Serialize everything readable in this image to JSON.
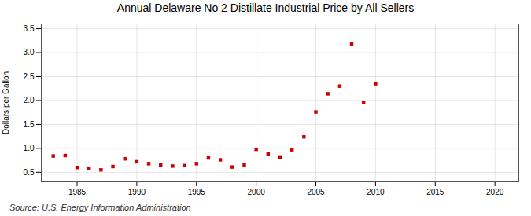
{
  "chart_data": {
    "type": "scatter",
    "title": "Annual Delaware No 2 Distillate Industrial Price by All Sellers",
    "ylabel": "Dollars per Gallon",
    "source": "Source: U.S. Energy Information Administration",
    "color": "#cc0000",
    "marker": "square",
    "grid": true,
    "x": [
      1983,
      1984,
      1985,
      1986,
      1987,
      1988,
      1989,
      1990,
      1991,
      1992,
      1993,
      1994,
      1995,
      1996,
      1997,
      1998,
      1999,
      2000,
      2001,
      2002,
      2003,
      2004,
      2005,
      2006,
      2007,
      2008,
      2009,
      2010
    ],
    "values": [
      0.84,
      0.85,
      0.6,
      0.58,
      0.55,
      0.62,
      0.78,
      0.72,
      0.68,
      0.65,
      0.63,
      0.64,
      0.68,
      0.8,
      0.76,
      0.61,
      0.65,
      0.98,
      0.88,
      0.82,
      0.97,
      1.24,
      1.76,
      2.14,
      2.3,
      3.18,
      1.96,
      2.35
    ],
    "xlim": [
      1982,
      2022
    ],
    "ylim": [
      0.3,
      3.6
    ],
    "xticks": [
      1985,
      1990,
      1995,
      2000,
      2005,
      2010,
      2015,
      2020
    ],
    "yticks": [
      0.5,
      {
        "value": 1.0,
        "label": "1.0"
      },
      1.5,
      {
        "value": 2.0,
        "label": "2.0"
      },
      2.5,
      {
        "value": 3.0,
        "label": "3.0"
      },
      3.5
    ]
  }
}
